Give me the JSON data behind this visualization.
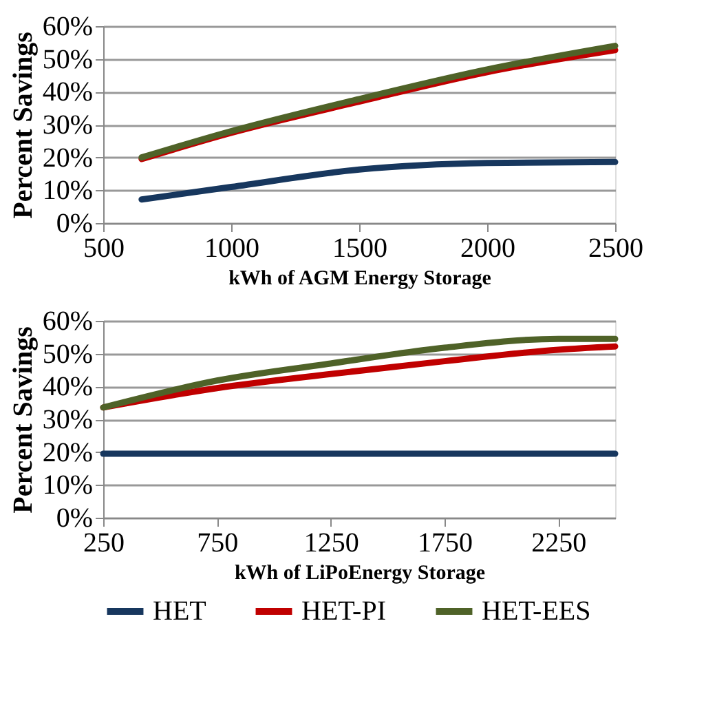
{
  "chart_data": [
    {
      "type": "line",
      "xlabel": "kWh of AGM Energy Storage",
      "ylabel": "Percent Savings",
      "xlim": [
        500,
        2500
      ],
      "xticks": [
        500,
        1000,
        1500,
        2000,
        2500
      ],
      "ylim": [
        0,
        60
      ],
      "yticks": [
        {
          "value": 0,
          "label": "0%"
        },
        {
          "value": 10,
          "label": "10%"
        },
        {
          "value": 20,
          "label": "20%"
        },
        {
          "value": 30,
          "label": "30%"
        },
        {
          "value": 40,
          "label": "40%"
        },
        {
          "value": 50,
          "label": "50%"
        },
        {
          "value": 60,
          "label": "60%"
        }
      ],
      "grid": "y",
      "legend": "bottom",
      "marker": "none",
      "line_style": "solid",
      "x": [
        650,
        1000,
        1500,
        2000,
        2500
      ],
      "series": [
        {
          "name": "HET",
          "color": "#17375e",
          "values": [
            7.2,
            11,
            16.3,
            18.3,
            18.6
          ]
        },
        {
          "name": "HET-PI",
          "color": "#c00000",
          "values": [
            19.5,
            27.5,
            37,
            46,
            52.7
          ]
        },
        {
          "name": "HET-EES",
          "color": "#4f6228",
          "values": [
            20,
            28,
            37.8,
            46.8,
            54
          ]
        }
      ]
    },
    {
      "type": "line",
      "xlabel": "kWh of LiPoEnergy Storage",
      "ylabel": "Percent Savings",
      "xlim": [
        250,
        2500
      ],
      "xticks": [
        250,
        750,
        1250,
        1750,
        2250
      ],
      "ylim": [
        0,
        60
      ],
      "yticks": [
        {
          "value": 0,
          "label": "0%"
        },
        {
          "value": 10,
          "label": "10%"
        },
        {
          "value": 20,
          "label": "20%"
        },
        {
          "value": 30,
          "label": "30%"
        },
        {
          "value": 40,
          "label": "40%"
        },
        {
          "value": 50,
          "label": "50%"
        },
        {
          "value": 60,
          "label": "60%"
        }
      ],
      "grid": "y",
      "legend": "bottom",
      "marker": "none",
      "line_style": "solid",
      "x": [
        250,
        750,
        1250,
        1750,
        2250,
        2500
      ],
      "series": [
        {
          "name": "HET",
          "color": "#17375e",
          "values": [
            19.5,
            19.5,
            19.5,
            19.5,
            19.5,
            19.5
          ]
        },
        {
          "name": "HET-PI",
          "color": "#c00000",
          "values": [
            33.6,
            39.5,
            43.8,
            47.7,
            51.2,
            52.2
          ]
        },
        {
          "name": "HET-EES",
          "color": "#4f6228",
          "values": [
            33.6,
            41.8,
            47,
            51.8,
            54.5,
            54.5
          ]
        }
      ]
    }
  ]
}
